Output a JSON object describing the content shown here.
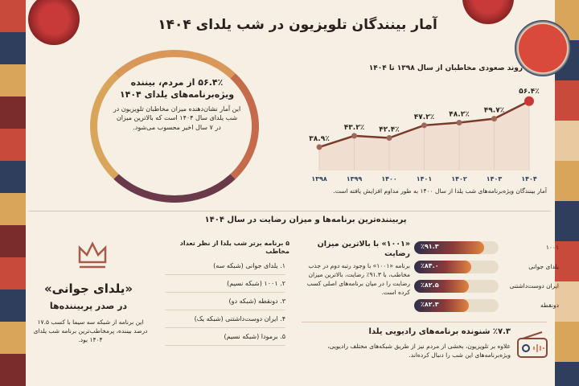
{
  "title": "آمار بینندگان تلویزیون در شب یلدای ۱۴۰۴",
  "highlight": {
    "headline": "۵۶.۴٪ از مردم، بیننده ویژه‌برنامه‌های یلدای ۱۴۰۴",
    "text": "این آمار نشان‌دهنده میزان مخاطبان تلویزیون در شب یلدای سال ۱۴۰۴ است که بالاترین میزان در ۷ سال اخیر محسوب می‌شود."
  },
  "chart_data": {
    "type": "line",
    "title": "روند صعودی مخاطبان از سال ۱۳۹۸ تا ۱۴۰۴",
    "categories": [
      "۱۳۹۸",
      "۱۳۹۹",
      "۱۴۰۰",
      "۱۴۰۱",
      "۱۴۰۲",
      "۱۴۰۳",
      "۱۴۰۴"
    ],
    "values": [
      38.9,
      43.2,
      42.4,
      47.2,
      48.2,
      49.7,
      56.4
    ],
    "labels": [
      "۳۸.۹٪",
      "۴۳.۲٪",
      "۴۲.۴٪",
      "۴۷.۲٪",
      "۴۸.۲٪",
      "۴۹.۷٪",
      "۵۶.۴٪"
    ],
    "ylim": [
      30,
      60
    ],
    "caption": "آمار بینندگان ویژه‌برنامه‌های شب یلدا از سال ۱۴۰۰ به طور مداوم افزایش یافته است."
  },
  "section_title": "پربیننده‌ترین برنامه‌ها و میزان رضایت در سال ۱۴۰۴",
  "satisfaction": {
    "title": "«۱۰۰۱» با بالاترین میزان رضایت",
    "text": "برنامه «۱۰۰۱» با وجود رتبه دوم در جذب مخاطب، با ۹۱.۳٪ رضایت، بالاترین میزان رضایت را در میان برنامه‌های اصلی کسب کرده است.",
    "bars": [
      {
        "label": "۱۰۰۱",
        "value": 91.3,
        "text": "٪۹۱.۳"
      },
      {
        "label": "یلدای جوانی",
        "value": 84.0,
        "text": "٪۸۴.۰"
      },
      {
        "label": "ایران دوست‌داشتنی",
        "value": 82.5,
        "text": "٪۸۲.۵"
      },
      {
        "label": "دونقطه",
        "value": 82.3,
        "text": "٪۸۲.۳"
      }
    ]
  },
  "top5": {
    "title": "۵ برنامه برتر شب یلدا از نظر تعداد مخاطب",
    "items": [
      "۱.  یلدای جوانی (شبکه سه)",
      "۲.  ۱۰۰۱ (شبکه نسیم)",
      "۳.  دونقطه (شبکه دو)",
      "۴.  ایران دوست‌داشتنی (شبکه یک)",
      "۵.  برمودا (شبکه نسیم)"
    ]
  },
  "winner": {
    "title": "«یلدای جوانی»",
    "subtitle": "در صدر پربیننده‌ها",
    "text": "این برنامه از شبکه سه سیما با کسب ۱۷.۵ درصد بیننده، پرمخاطب‌ترین برنامه شب یلدای ۱۴۰۴ بود."
  },
  "radio": {
    "title": "٪۷.۳ شنونده برنامه‌های رادیویی یلدا",
    "text": "علاوه بر تلویزیون، بخشی از مردم نیز از طریق شبکه‌های مختلف رادیویی، ویژه‌برنامه‌های این شب را دنبال کرده‌اند."
  },
  "colors": {
    "background": "#f6efe3",
    "accent": "#b5493a",
    "line": "#7a3a2e"
  }
}
